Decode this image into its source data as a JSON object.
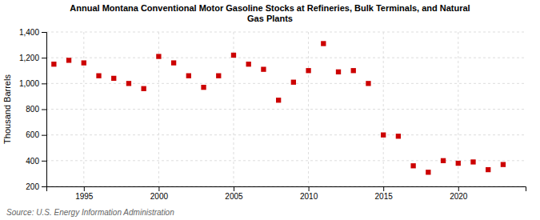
{
  "chart_data": {
    "type": "scatter",
    "title": "Annual Montana Conventional Motor Gasoline Stocks at Refineries, Bulk Terminals, and Natural\nGas Plants",
    "ylabel": "Thousand Barrels",
    "source": "Source: U.S. Energy Information Administration",
    "color": "#cc0000",
    "marker": "square",
    "grid": true,
    "x": [
      1993,
      1994,
      1995,
      1996,
      1997,
      1998,
      1999,
      2000,
      2001,
      2002,
      2003,
      2004,
      2005,
      2006,
      2007,
      2008,
      2009,
      2010,
      2011,
      2012,
      2013,
      2014,
      2015,
      2016,
      2017,
      2018,
      2019,
      2020,
      2021,
      2022,
      2023
    ],
    "values": [
      1150,
      1180,
      1160,
      1060,
      1040,
      1000,
      960,
      1210,
      1160,
      1060,
      970,
      1060,
      1220,
      1150,
      1110,
      870,
      1010,
      1100,
      1310,
      1090,
      1100,
      1000,
      600,
      590,
      360,
      310,
      400,
      380,
      390,
      330,
      370
    ],
    "xlim": [
      1992.5,
      2024.5
    ],
    "ylim": [
      200,
      1400
    ],
    "xticks": [
      1995,
      2000,
      2005,
      2010,
      2015,
      2020
    ],
    "yticks": [
      200,
      400,
      600,
      800,
      {
        "value": 1000,
        "label": "1,000"
      },
      {
        "value": 1200,
        "label": "1,200"
      },
      {
        "value": 1400,
        "label": "1,400"
      }
    ]
  }
}
